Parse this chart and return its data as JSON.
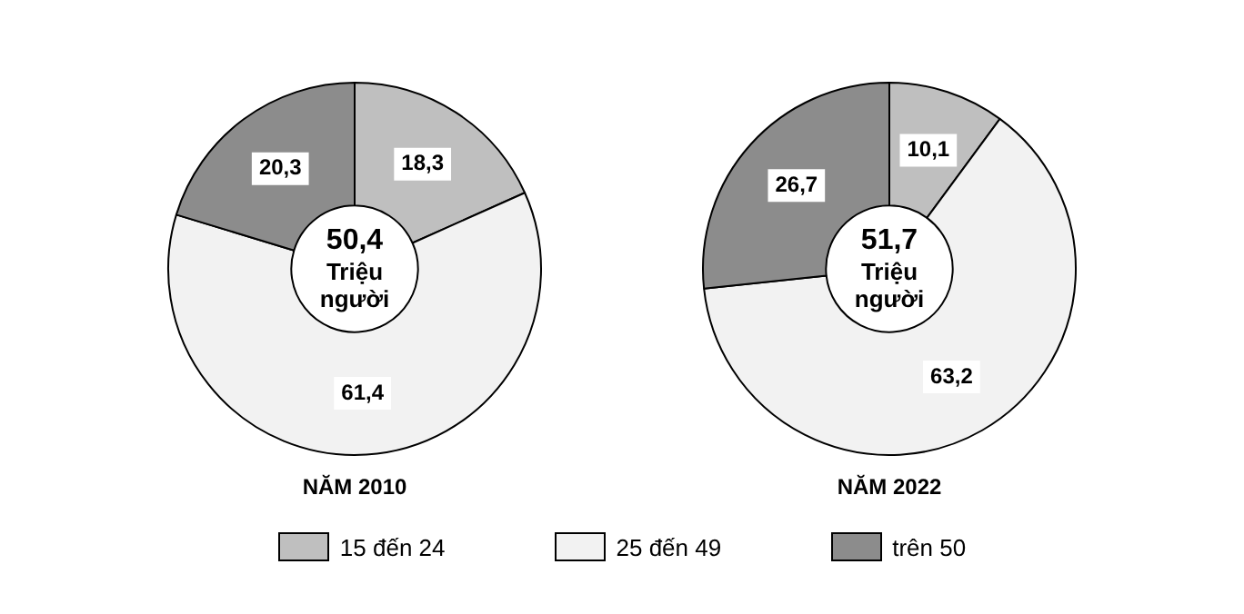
{
  "chart_data": [
    {
      "type": "donut",
      "title": "NĂM 2010",
      "categories": [
        "15 đến 24",
        "25 đến 49",
        "trên 50"
      ],
      "values": [
        18.3,
        61.4,
        20.3
      ],
      "value_labels": [
        "18,3",
        "61,4",
        "20,3"
      ],
      "colors": [
        "#bfbfbf",
        "#f2f2f2",
        "#8c8c8c"
      ],
      "annotations": [
        "50,4",
        "Triệu người"
      ],
      "legend": "bottom"
    },
    {
      "type": "donut",
      "title": "NĂM 2022",
      "categories": [
        null,
        null,
        null
      ],
      "values": [
        10.1,
        63.2,
        26.7
      ],
      "value_labels": [
        "10,1",
        "63,2",
        "26,7"
      ],
      "colors": [
        "#bfbfbf",
        "#f2f2f2",
        "#8c8c8c"
      ],
      "annotations": [
        "51,7",
        "Triệu người"
      ]
    }
  ]
}
